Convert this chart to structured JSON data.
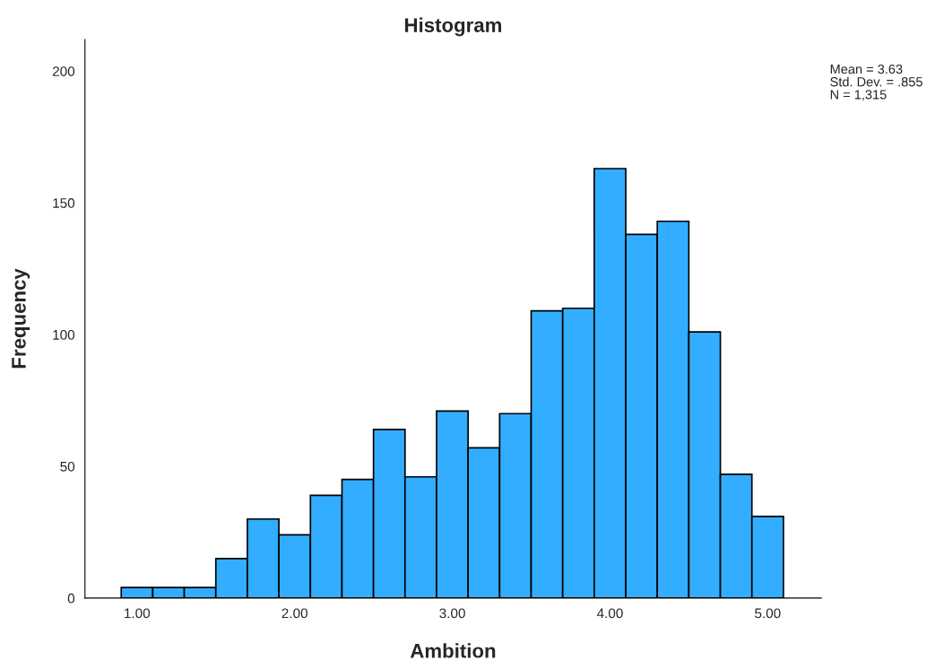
{
  "chart_data": {
    "type": "histogram",
    "title": "Histogram",
    "xlabel": "Ambition",
    "ylabel": "Frequency",
    "bins": [
      0.9,
      1.1,
      1.3,
      1.5,
      1.7,
      1.9,
      2.1,
      2.3,
      2.5,
      2.7,
      2.9,
      3.1,
      3.3,
      3.5,
      3.7,
      3.9,
      4.1,
      4.3,
      4.5,
      4.7,
      4.9,
      5.1
    ],
    "values": [
      4,
      4,
      4,
      15,
      30,
      24,
      39,
      45,
      64,
      46,
      71,
      57,
      70,
      109,
      110,
      163,
      138,
      143,
      101,
      47,
      31
    ],
    "color": "#33adff",
    "xlim": [
      0.67,
      5.34
    ],
    "xticks": [
      {
        "value": 1,
        "label": "1.00"
      },
      {
        "value": 2,
        "label": "2.00"
      },
      {
        "value": 3,
        "label": "3.00"
      },
      {
        "value": 4,
        "label": "4.00"
      },
      {
        "value": 5,
        "label": "5.00"
      }
    ],
    "ylim": [
      0,
      212
    ],
    "yticks": [
      0,
      50,
      100,
      150,
      200
    ],
    "grid": false,
    "annotations": [
      "Mean = 3.63",
      "Std. Dev. = .855",
      "N = 1,315"
    ]
  }
}
